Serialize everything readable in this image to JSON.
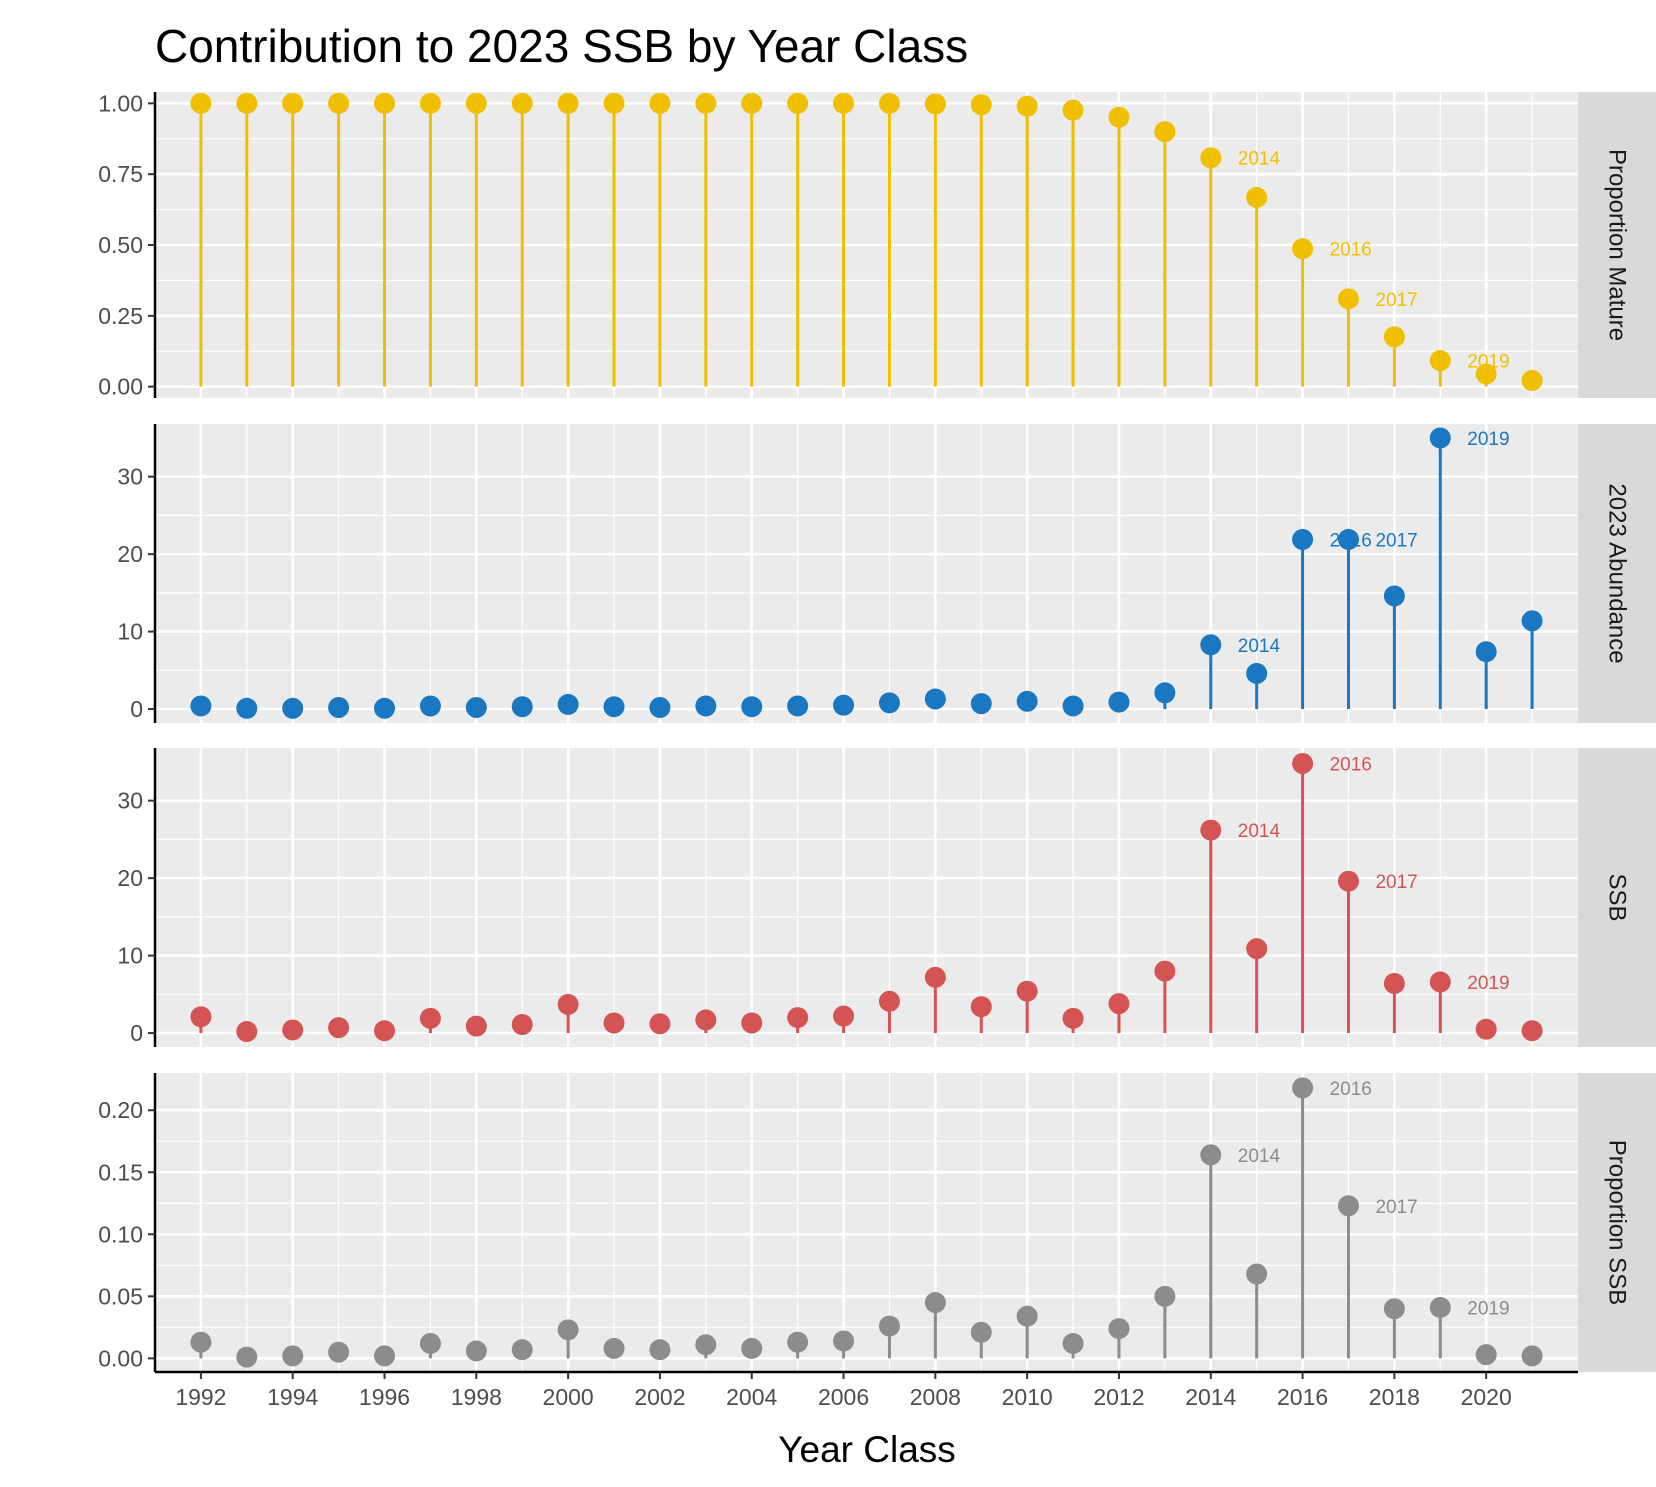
{
  "chart_data": {
    "type": "lollipop",
    "title": "Contribution to 2023 SSB by Year Class",
    "xlabel": "Year Class",
    "x": [
      1992,
      1993,
      1994,
      1995,
      1996,
      1997,
      1998,
      1999,
      2000,
      2001,
      2002,
      2003,
      2004,
      2005,
      2006,
      2007,
      2008,
      2009,
      2010,
      2011,
      2012,
      2013,
      2014,
      2015,
      2016,
      2017,
      2018,
      2019,
      2020,
      2021
    ],
    "x_ticks": [
      "1992",
      "1994",
      "1996",
      "1998",
      "2000",
      "2002",
      "2004",
      "2006",
      "2008",
      "2010",
      "2012",
      "2014",
      "2016",
      "2018",
      "2020"
    ],
    "xlim": [
      1991,
      2022
    ],
    "grid": true,
    "panels": [
      {
        "name": "Proportion Mature",
        "color": "#f0c000",
        "ylim": [
          -0.04,
          1.04
        ],
        "y_ticks": [
          0,
          0.25,
          0.5,
          0.75,
          1.0
        ],
        "y_tick_labels": [
          "0.00",
          "0.25",
          "0.50",
          "0.75",
          "1.00"
        ],
        "values": [
          1.0,
          1.0,
          1.0,
          1.0,
          1.0,
          1.0,
          1.0,
          1.0,
          1.0,
          1.0,
          1.0,
          1.0,
          1.0,
          1.0,
          1.0,
          1.0,
          0.998,
          0.995,
          0.99,
          0.976,
          0.951,
          0.9,
          0.808,
          0.668,
          0.487,
          0.31,
          0.176,
          0.092,
          0.045,
          0.022
        ],
        "labels": [
          {
            "x": 2014,
            "text": "2014"
          },
          {
            "x": 2016,
            "text": "2016"
          },
          {
            "x": 2017,
            "text": "2017"
          },
          {
            "x": 2019,
            "text": "2019"
          }
        ]
      },
      {
        "name": "2023 Abundance",
        "color": "#1a78c2",
        "ylim": [
          -1.8,
          36.8
        ],
        "y_ticks": [
          0,
          10,
          20,
          30
        ],
        "y_tick_labels": [
          "0",
          "10",
          "20",
          "30"
        ],
        "values": [
          0.4,
          0.1,
          0.1,
          0.2,
          0.1,
          0.4,
          0.2,
          0.3,
          0.6,
          0.3,
          0.2,
          0.4,
          0.3,
          0.4,
          0.5,
          0.8,
          1.3,
          0.7,
          1.0,
          0.4,
          0.9,
          2.1,
          8.3,
          4.6,
          21.9,
          21.9,
          14.6,
          35.0,
          7.4,
          11.4
        ],
        "labels": [
          {
            "x": 2014,
            "text": "2014"
          },
          {
            "x": 2016,
            "text": "2016"
          },
          {
            "x": 2017,
            "text": "2017"
          },
          {
            "x": 2019,
            "text": "2019"
          }
        ]
      },
      {
        "name": "SSB",
        "color": "#d45454",
        "ylim": [
          -1.8,
          36.8
        ],
        "y_ticks": [
          0,
          10,
          20,
          30
        ],
        "y_tick_labels": [
          "0",
          "10",
          "20",
          "30"
        ],
        "values": [
          2.1,
          0.2,
          0.4,
          0.7,
          0.3,
          1.9,
          0.9,
          1.1,
          3.7,
          1.3,
          1.2,
          1.7,
          1.3,
          2.0,
          2.2,
          4.1,
          7.2,
          3.4,
          5.4,
          1.9,
          3.8,
          8.0,
          26.2,
          10.9,
          34.8,
          19.6,
          6.4,
          6.6,
          0.5,
          0.3
        ],
        "labels": [
          {
            "x": 2014,
            "text": "2014"
          },
          {
            "x": 2016,
            "text": "2016"
          },
          {
            "x": 2017,
            "text": "2017"
          },
          {
            "x": 2019,
            "text": "2019"
          }
        ]
      },
      {
        "name": "Proportion SSB",
        "color": "#8c8c8c",
        "ylim": [
          -0.011,
          0.23
        ],
        "y_ticks": [
          0,
          0.05,
          0.1,
          0.15,
          0.2
        ],
        "y_tick_labels": [
          "0.00",
          "0.05",
          "0.10",
          "0.15",
          "0.20"
        ],
        "values": [
          0.013,
          0.001,
          0.002,
          0.005,
          0.002,
          0.012,
          0.006,
          0.007,
          0.023,
          0.008,
          0.007,
          0.011,
          0.008,
          0.013,
          0.014,
          0.026,
          0.045,
          0.021,
          0.034,
          0.012,
          0.024,
          0.05,
          0.164,
          0.068,
          0.218,
          0.123,
          0.04,
          0.041,
          0.003,
          0.002
        ],
        "labels": [
          {
            "x": 2014,
            "text": "2014"
          },
          {
            "x": 2016,
            "text": "2016"
          },
          {
            "x": 2017,
            "text": "2017"
          },
          {
            "x": 2019,
            "text": "2019"
          }
        ]
      }
    ]
  }
}
